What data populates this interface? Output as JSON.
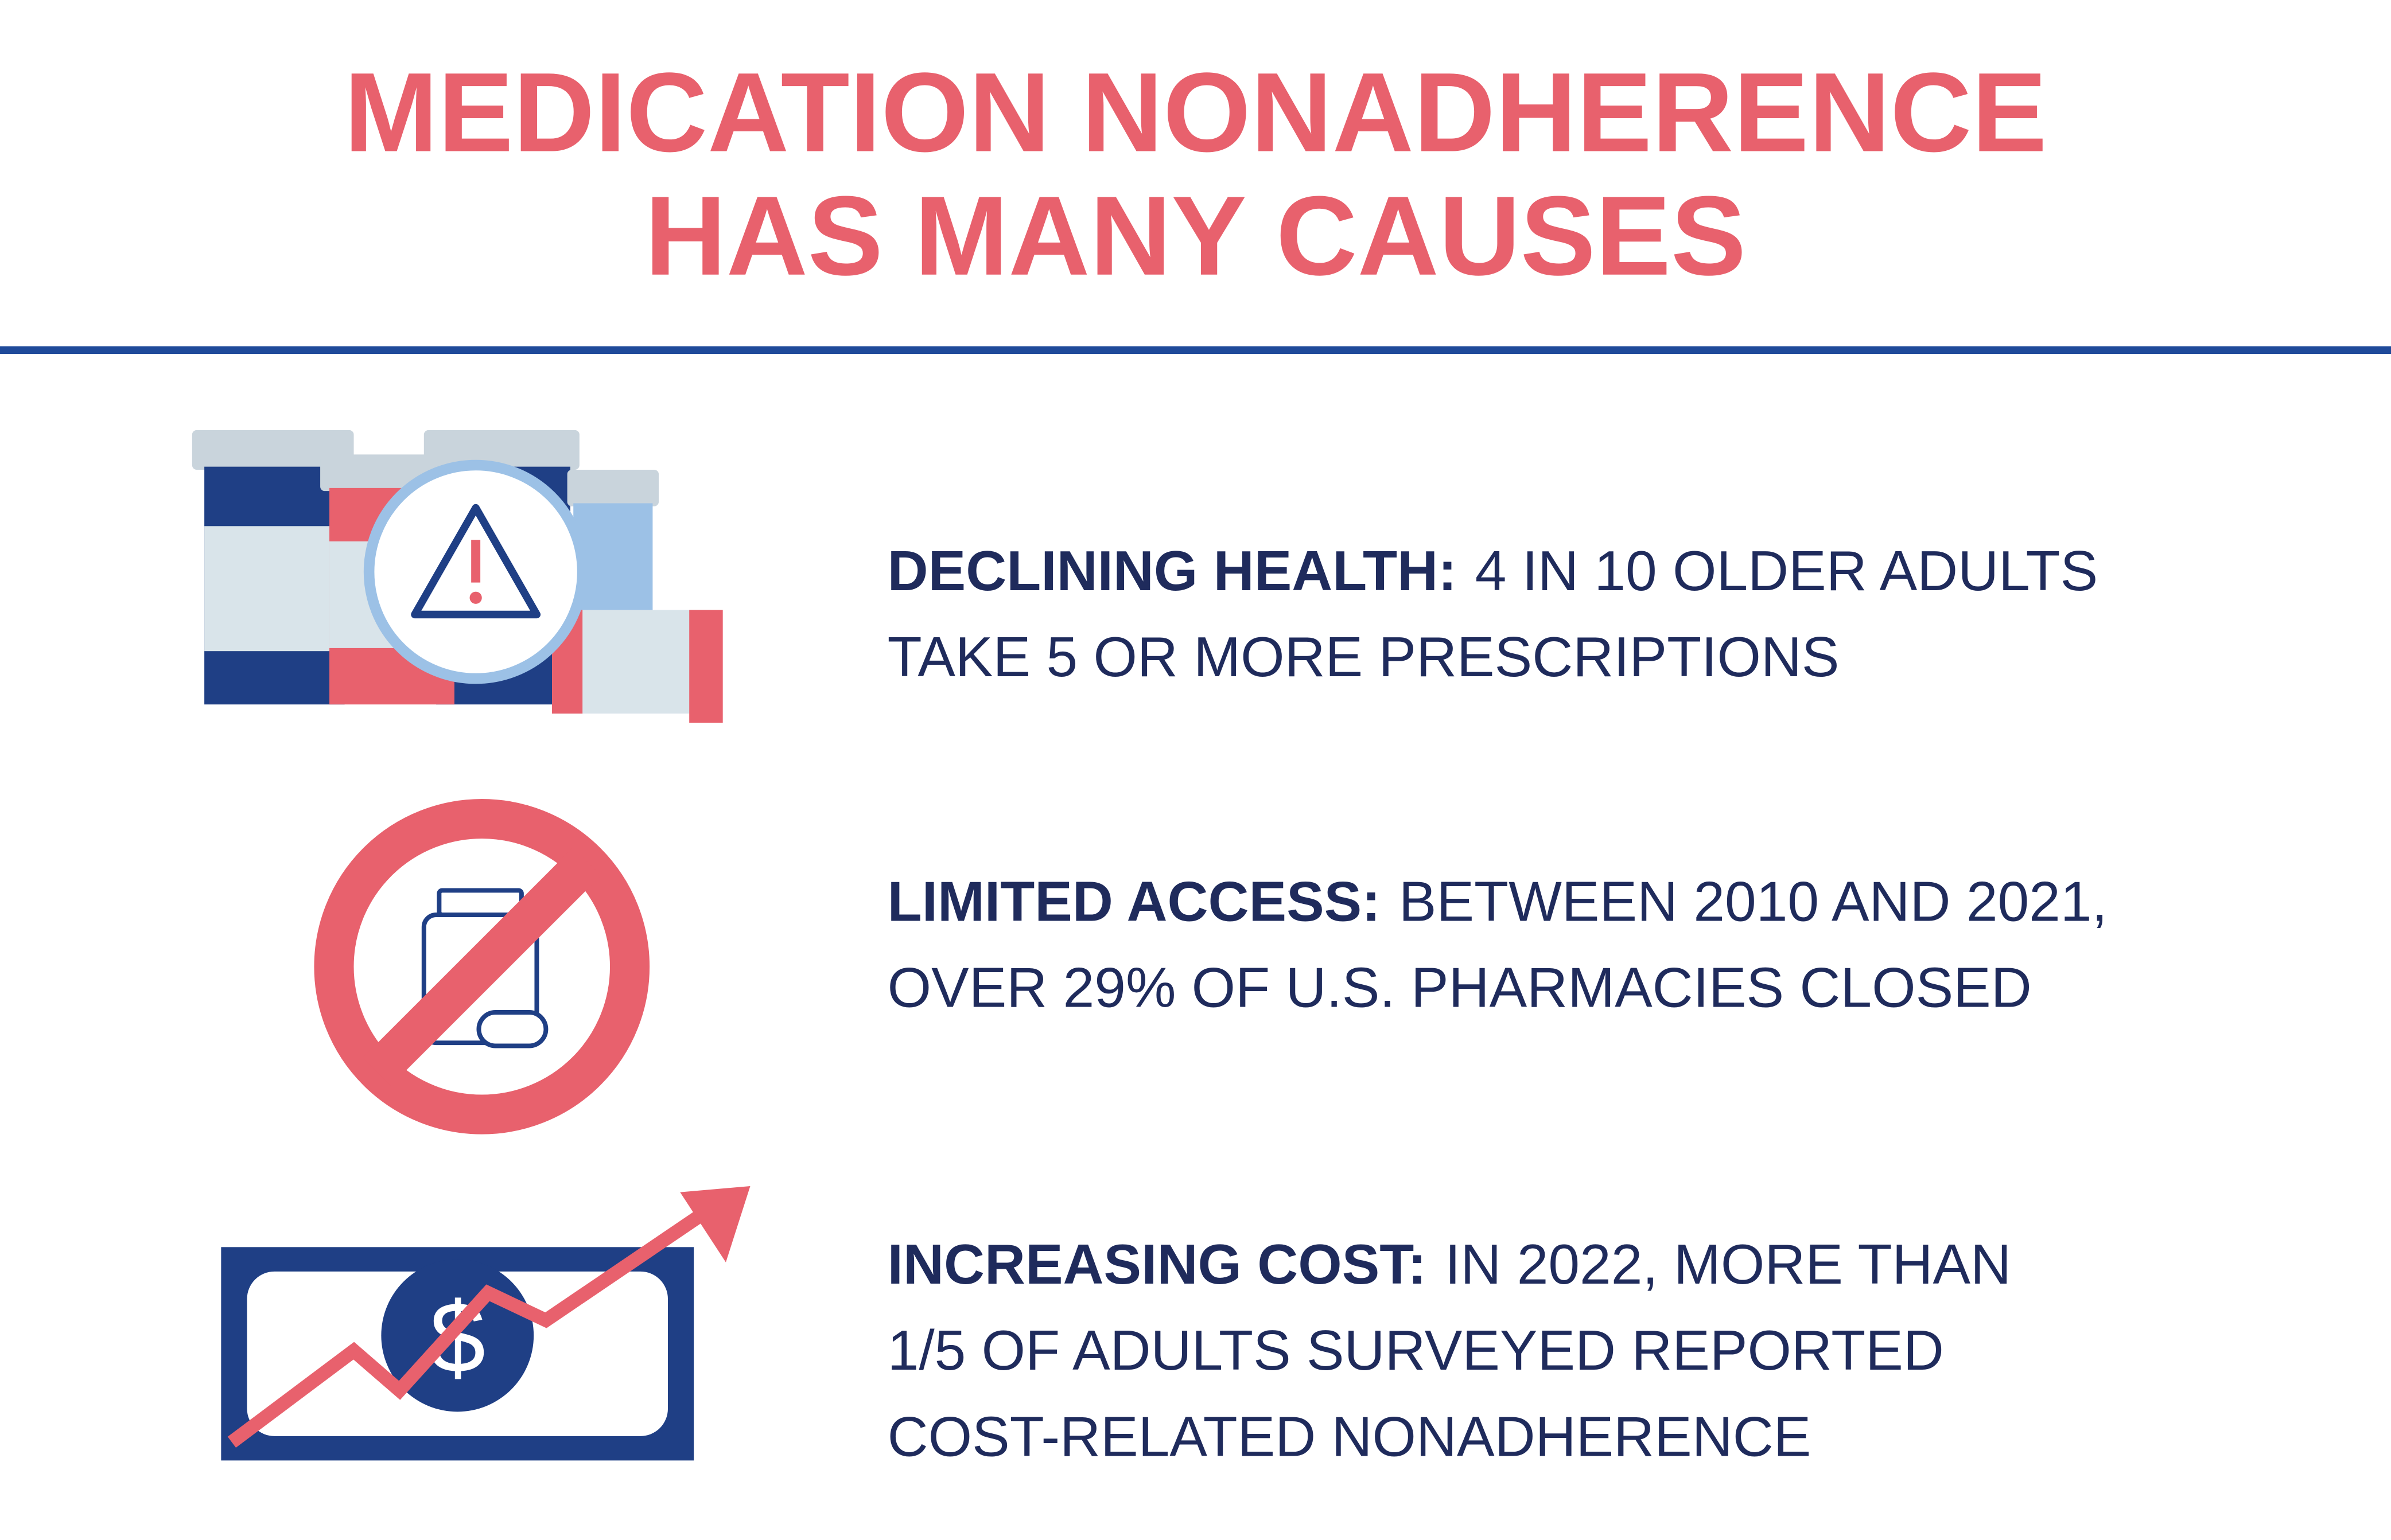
{
  "header": {
    "title_lines": [
      "MEDICATION NONADHERENCE",
      "HAS MANY CAUSES"
    ]
  },
  "items": [
    {
      "label": "DECLINING HEALTH:",
      "lines": [
        "4 IN 10 OLDER ADULTS",
        "TAKE 5 OR MORE PRESCRIPTIONS"
      ]
    },
    {
      "label": "LIMITED ACCESS:",
      "lines": [
        "BETWEEN 2010 AND 2021,",
        "OVER 29% OF U.S. PHARMACIES CLOSED"
      ]
    },
    {
      "label": "INCREASING COST:",
      "lines": [
        "IN 2022, MORE THAN",
        "1/5 OF ADULTS SURVEYED REPORTED",
        "COST-RELATED NONADHERENCE"
      ]
    }
  ]
}
